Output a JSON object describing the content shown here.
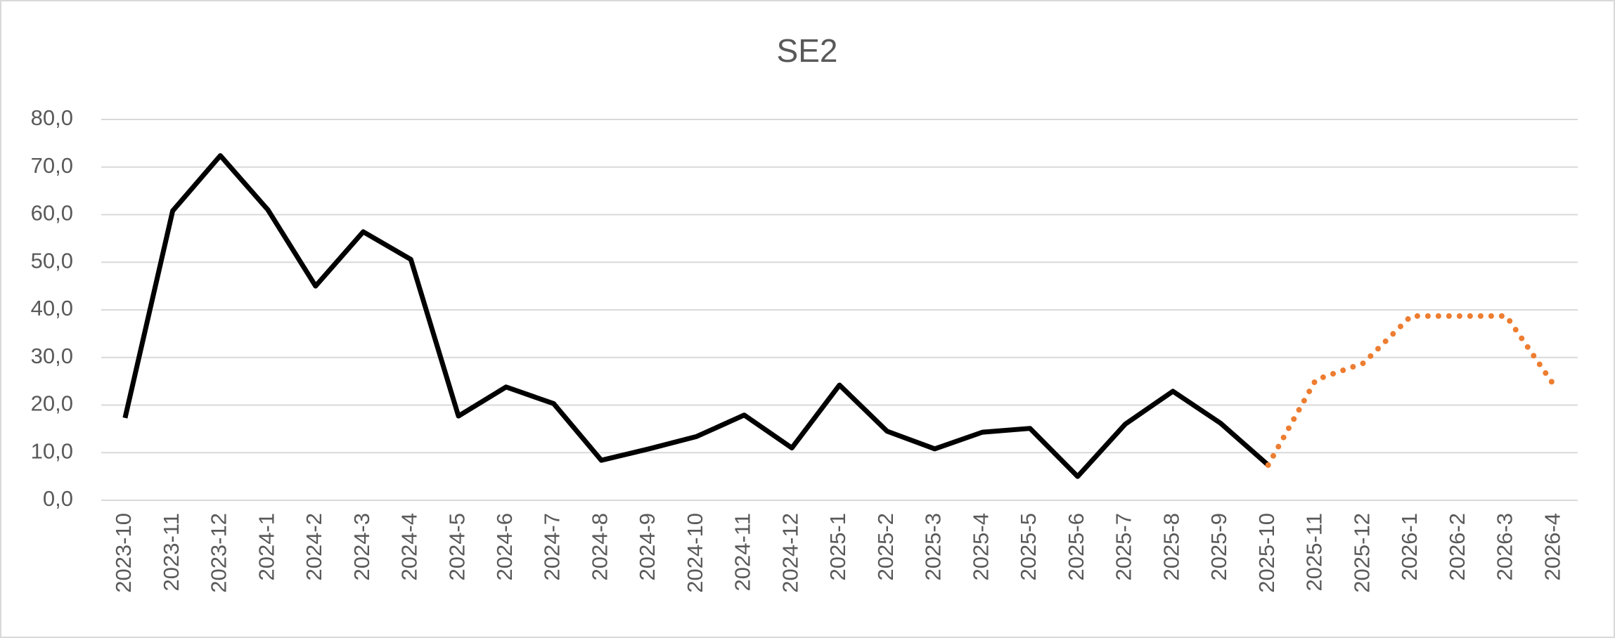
{
  "chart_data": {
    "type": "line",
    "title": "SE2",
    "categories": [
      "2023-10",
      "2023-11",
      "2023-12",
      "2024-1",
      "2024-2",
      "2024-3",
      "2024-4",
      "2024-5",
      "2024-6",
      "2024-7",
      "2024-8",
      "2024-9",
      "2024-10",
      "2024-11",
      "2024-12",
      "2025-1",
      "2025-2",
      "2025-3",
      "2025-4",
      "2025-5",
      "2025-6",
      "2025-7",
      "2025-8",
      "2025-9",
      "2025-10",
      "2025-11",
      "2025-12",
      "2026-1",
      "2026-2",
      "2026-3",
      "2026-4"
    ],
    "series": [
      {
        "color": "#000000",
        "line_style": "solid",
        "values": [
          17.3,
          60.8,
          72.4,
          61.0,
          45.0,
          56.4,
          50.6,
          17.7,
          23.8,
          20.3,
          8.4,
          10.8,
          13.4,
          17.9,
          11.0,
          24.2,
          14.5,
          10.8,
          14.3,
          15.1,
          5.0,
          16.0,
          22.9,
          16.2,
          7.4,
          null,
          null,
          null,
          null,
          null,
          null
        ]
      },
      {
        "color": "#ed7d31",
        "line_style": "dotted",
        "values": [
          null,
          null,
          null,
          null,
          null,
          null,
          null,
          null,
          null,
          null,
          null,
          null,
          null,
          null,
          null,
          null,
          null,
          null,
          null,
          null,
          null,
          null,
          null,
          null,
          7.4,
          25.3,
          28.8,
          38.7,
          38.7,
          38.7,
          24.2
        ]
      }
    ],
    "ylim": [
      0,
      80
    ],
    "yticks": [
      {
        "value": 0,
        "label": "0,0"
      },
      {
        "value": 10,
        "label": "10,0"
      },
      {
        "value": 20,
        "label": "20,0"
      },
      {
        "value": 30,
        "label": "30,0"
      },
      {
        "value": 40,
        "label": "40,0"
      },
      {
        "value": 50,
        "label": "50,0"
      },
      {
        "value": 60,
        "label": "60,0"
      },
      {
        "value": 70,
        "label": "70,0"
      },
      {
        "value": 80,
        "label": "80,0"
      }
    ],
    "grid": true
  }
}
